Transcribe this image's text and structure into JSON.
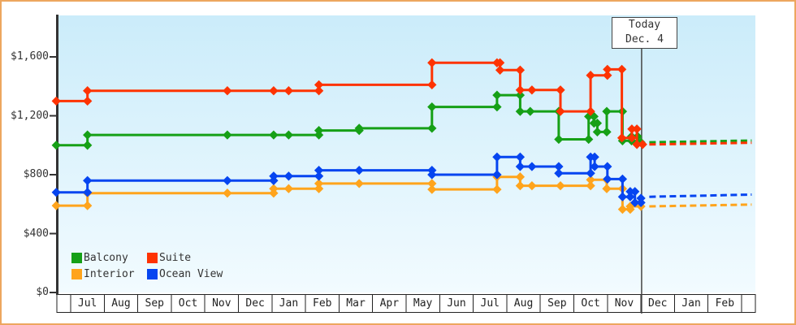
{
  "annotation": {
    "line1": "Today",
    "line2": "Dec. 4"
  },
  "colors": {
    "frame": "#eda65f",
    "axis": "#333333",
    "table_border": "#222222",
    "today_line": "#444444",
    "text": "#333333"
  },
  "legend": {
    "items": [
      {
        "label": "Balcony",
        "color": "#16a016"
      },
      {
        "label": "Suite",
        "color": "#fe3302"
      },
      {
        "label": "Interior",
        "color": "#ffa41c"
      },
      {
        "label": "Ocean View",
        "color": "#0645f0"
      }
    ]
  },
  "chart_data": {
    "type": "line",
    "description": "Cruise cabin price history and forecast by month (step line, prices in USD)",
    "x_axis": {
      "unit": "month_index",
      "note": "0 = left edge of first Jul column; fractional values are positions within months",
      "labels": [
        "Jul",
        "Aug",
        "Sep",
        "Oct",
        "Nov",
        "Dec",
        "Jan",
        "Feb",
        "Mar",
        "Apr",
        "May",
        "Jun",
        "Jul",
        "Aug",
        "Sep",
        "Oct",
        "Nov",
        "Dec",
        "Jan",
        "Feb"
      ]
    },
    "y_axis": {
      "unit": "USD",
      "ticks": [
        {
          "value": 0,
          "label": "$0"
        },
        {
          "value": 400,
          "label": "$400"
        },
        {
          "value": 800,
          "label": "$800"
        },
        {
          "value": 1200,
          "label": "$1,200"
        },
        {
          "value": 1600,
          "label": "$1,600"
        }
      ],
      "range": [
        0,
        1880
      ]
    },
    "today_marker": {
      "month_x": 17.02,
      "label_line1": "Today",
      "label_line2": "Dec. 4"
    },
    "plot_background_gradient": [
      "#cbecfa",
      "#f2fbff"
    ],
    "grid": false,
    "legend_position": "bottom-left",
    "series": [
      {
        "name": "Interior",
        "color": "#ffa41c",
        "points": [
          [
            -0.43,
            590
          ],
          [
            0.5,
            675
          ],
          [
            4.67,
            675
          ],
          [
            6.05,
            705
          ],
          [
            6.5,
            705
          ],
          [
            7.4,
            740
          ],
          [
            8.6,
            740
          ],
          [
            10.77,
            700
          ],
          [
            12.71,
            785
          ],
          [
            13.4,
            725
          ],
          [
            13.75,
            725
          ],
          [
            14.6,
            725
          ],
          [
            15.5,
            765
          ],
          [
            15.98,
            705
          ],
          [
            16.45,
            565
          ],
          [
            16.68,
            585
          ],
          [
            17.0,
            585
          ]
        ],
        "forecast": {
          "x": [
            17.25,
            20.3
          ],
          "price": [
            585,
            597
          ]
        }
      },
      {
        "name": "Ocean View",
        "color": "#0645f0",
        "points": [
          [
            -0.43,
            680
          ],
          [
            0.5,
            760
          ],
          [
            4.67,
            760
          ],
          [
            6.05,
            790
          ],
          [
            6.5,
            790
          ],
          [
            7.4,
            830
          ],
          [
            8.6,
            830
          ],
          [
            10.77,
            800
          ],
          [
            12.71,
            920
          ],
          [
            13.4,
            855
          ],
          [
            13.75,
            855
          ],
          [
            14.55,
            810
          ],
          [
            15.5,
            920
          ],
          [
            15.62,
            855
          ],
          [
            16.0,
            770
          ],
          [
            16.45,
            650
          ],
          [
            16.68,
            685
          ],
          [
            16.82,
            610
          ],
          [
            17.0,
            640
          ]
        ],
        "forecast": {
          "x": [
            17.25,
            20.3
          ],
          "price": [
            650,
            665
          ]
        }
      },
      {
        "name": "Balcony",
        "color": "#16a016",
        "points": [
          [
            -0.43,
            1000
          ],
          [
            0.5,
            1070
          ],
          [
            4.67,
            1070
          ],
          [
            6.05,
            1070
          ],
          [
            6.5,
            1070
          ],
          [
            7.4,
            1100
          ],
          [
            8.6,
            1115
          ],
          [
            10.77,
            1260
          ],
          [
            12.71,
            1340
          ],
          [
            13.4,
            1230
          ],
          [
            13.7,
            1230
          ],
          [
            14.55,
            1040
          ],
          [
            15.44,
            1195
          ],
          [
            15.6,
            1150
          ],
          [
            15.7,
            1090
          ],
          [
            15.98,
            1230
          ],
          [
            16.45,
            1030
          ],
          [
            16.72,
            1060
          ],
          [
            16.9,
            1020
          ],
          [
            17.0,
            1020
          ]
        ],
        "forecast": {
          "x": [
            17.25,
            20.3
          ],
          "price": [
            1020,
            1032
          ]
        }
      },
      {
        "name": "Suite",
        "color": "#fe3302",
        "points": [
          [
            -0.43,
            1300
          ],
          [
            0.5,
            1370
          ],
          [
            4.67,
            1370
          ],
          [
            6.05,
            1370
          ],
          [
            6.5,
            1370
          ],
          [
            7.4,
            1410
          ],
          [
            10.77,
            1560
          ],
          [
            12.71,
            1560
          ],
          [
            12.8,
            1510
          ],
          [
            13.4,
            1375
          ],
          [
            13.75,
            1375
          ],
          [
            14.6,
            1230
          ],
          [
            15.5,
            1475
          ],
          [
            16.0,
            1515
          ],
          [
            16.43,
            1050
          ],
          [
            16.73,
            1110
          ],
          [
            16.88,
            1005
          ],
          [
            17.05,
            1005
          ]
        ],
        "forecast": {
          "x": [
            17.25,
            20.3
          ],
          "price": [
            1005,
            1017
          ]
        }
      }
    ]
  }
}
